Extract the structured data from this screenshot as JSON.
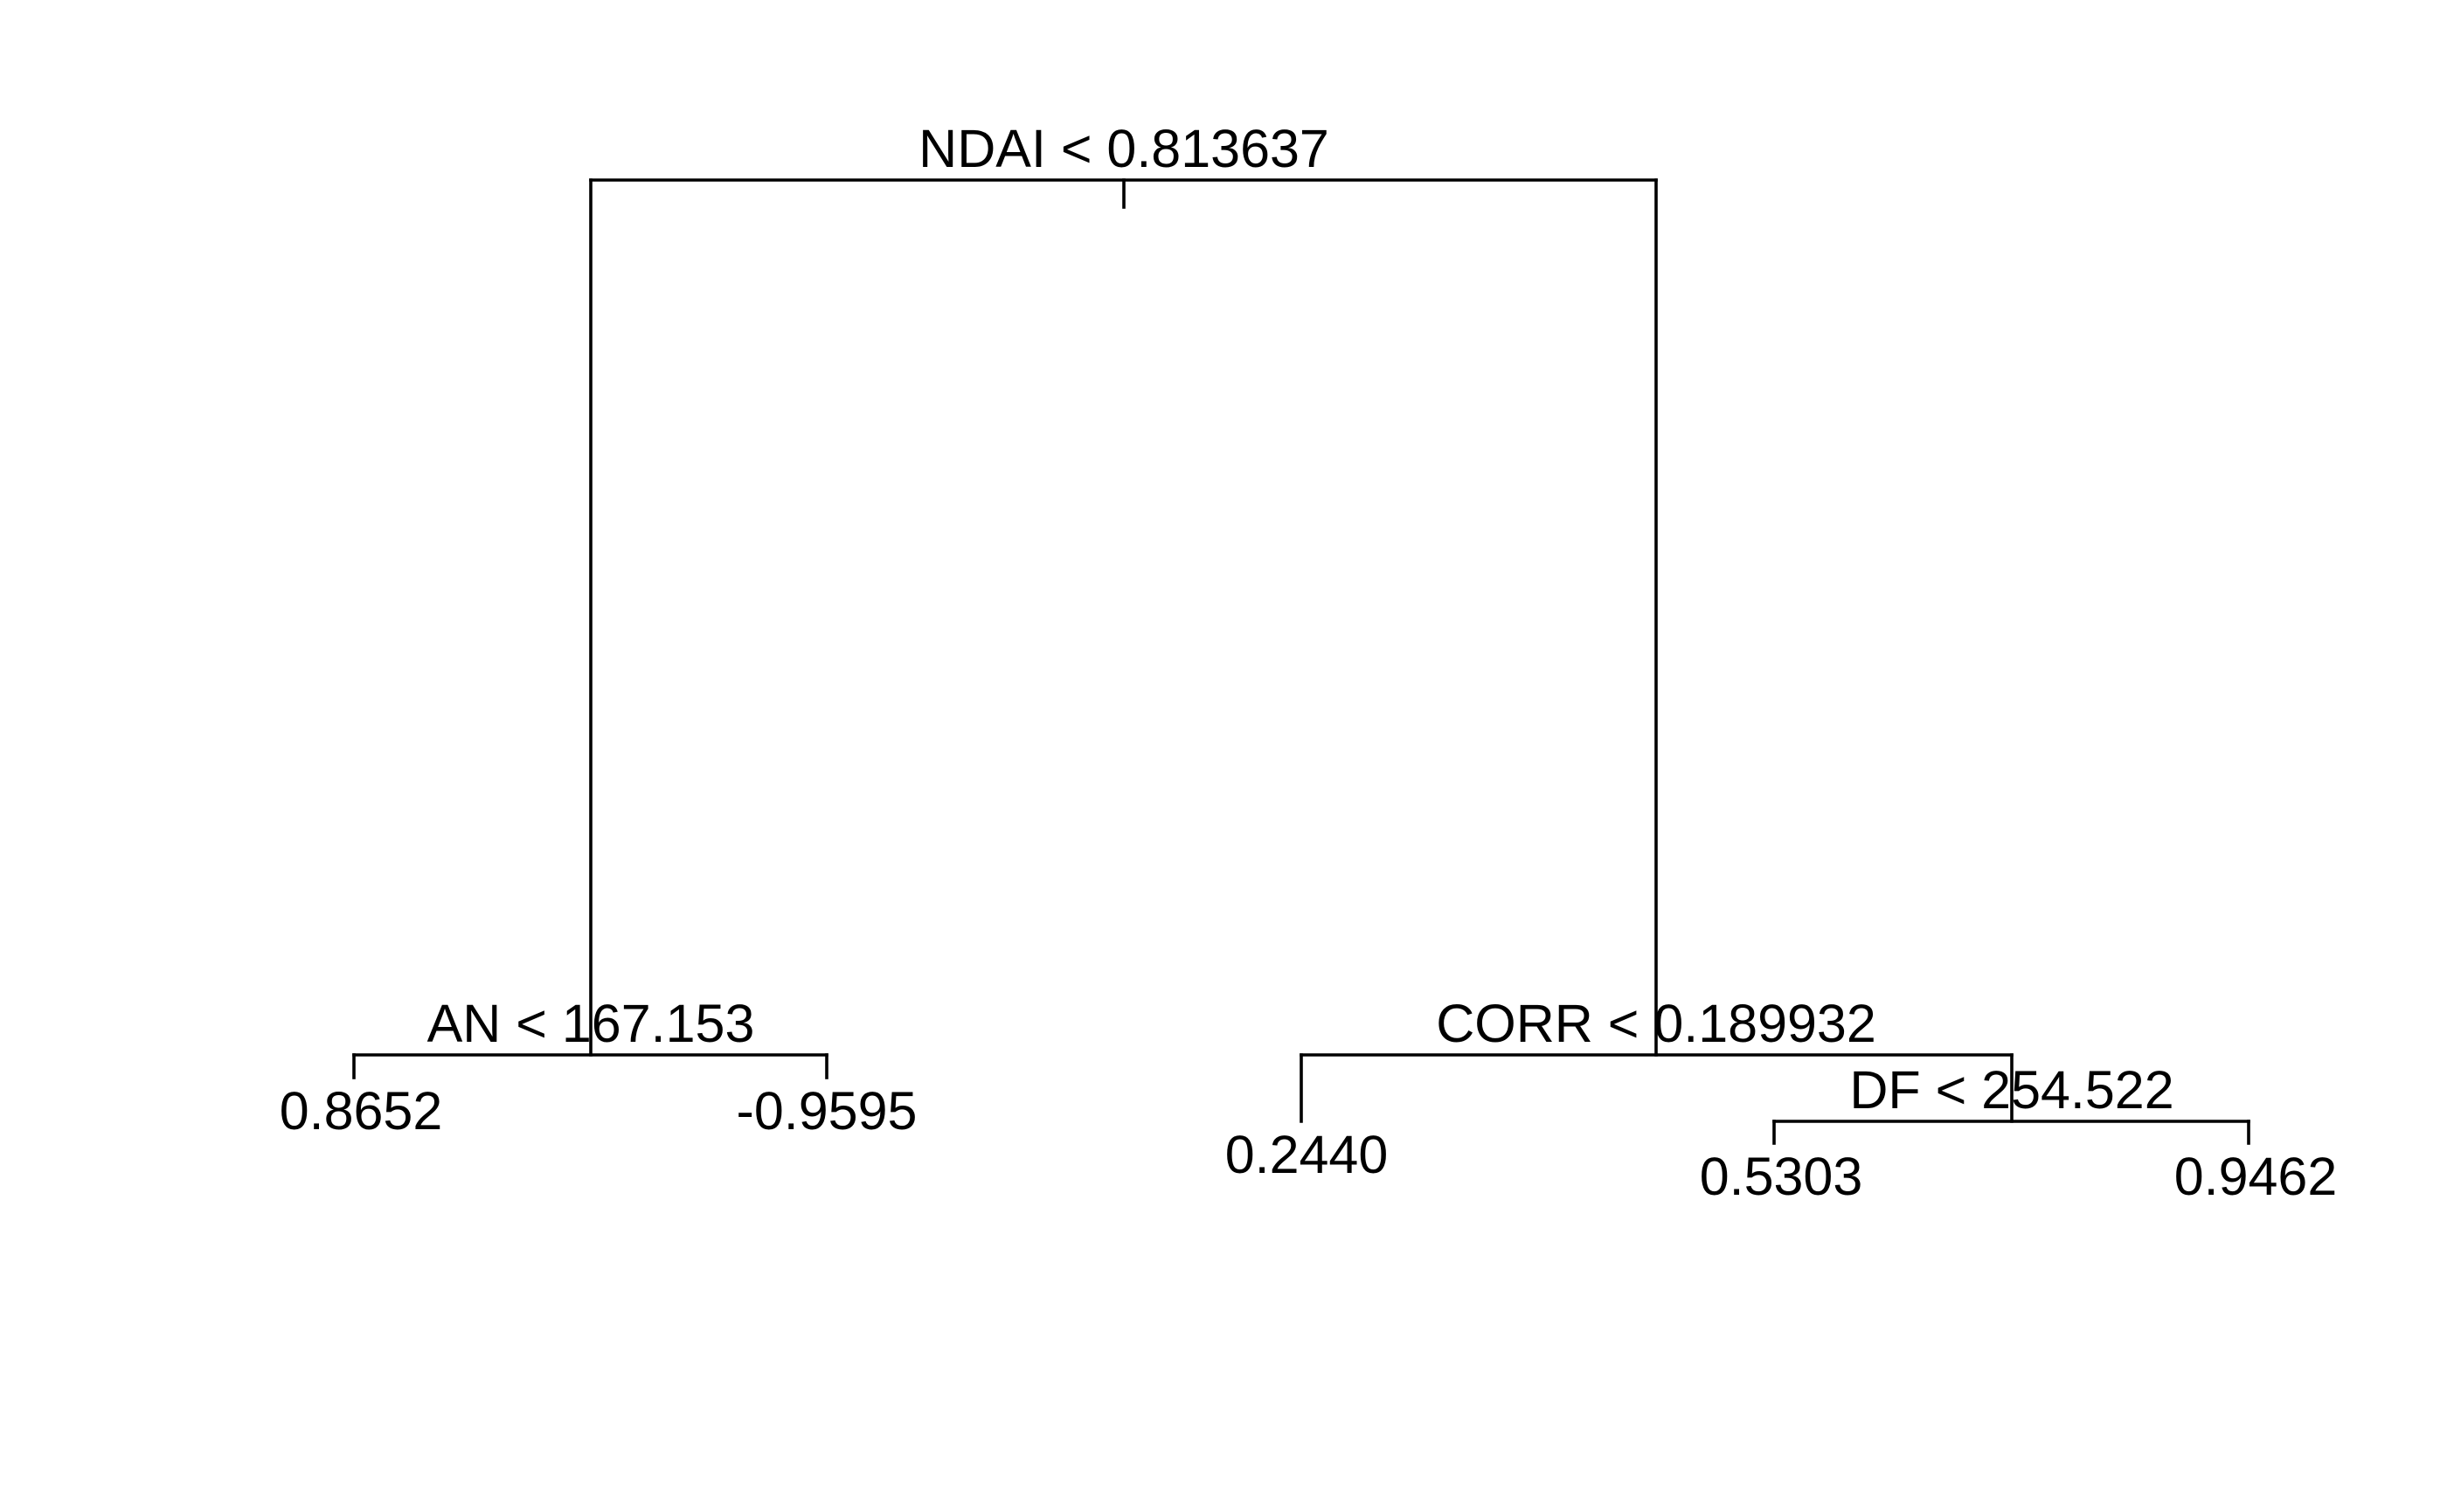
{
  "tree": {
    "root": {
      "split": "NDAI < 0.813637"
    },
    "left": {
      "split": "AN < 167.153",
      "leaf_left": "0.8652",
      "leaf_right": "-0.9595"
    },
    "right": {
      "split": "CORR < 0.189932",
      "leaf_left": "0.2440",
      "right": {
        "split": "DF < 254.522",
        "leaf_left": "0.5303",
        "leaf_right": "0.9462"
      }
    }
  }
}
